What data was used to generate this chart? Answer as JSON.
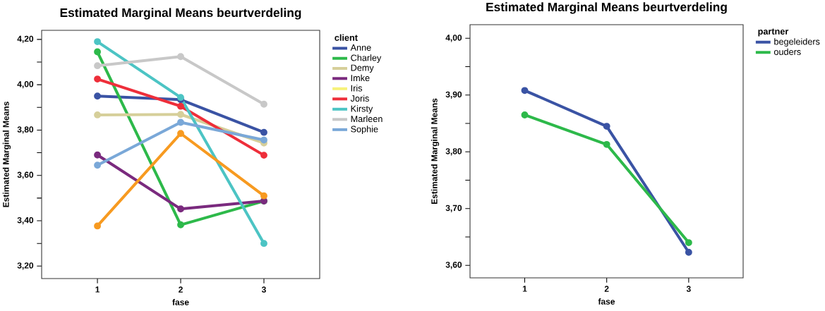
{
  "chart_data": [
    {
      "type": "line",
      "title": "Estimated Marginal Means beurtverdeling",
      "xlabel": "fase",
      "ylabel": "Estimated Marginal Means",
      "legend_title": "client",
      "legend": "right",
      "marker": "circle",
      "line_style": "solid",
      "x": [
        1,
        2,
        3
      ],
      "xlim": [
        0.33,
        3.67
      ],
      "xticks": [
        1,
        2,
        3
      ],
      "ylim": [
        3.145,
        4.24
      ],
      "yticks": [
        {
          "value": 3.2,
          "label": "3,20"
        },
        {
          "value": 3.3,
          "label": null
        },
        {
          "value": 3.4,
          "label": "3,40"
        },
        {
          "value": 3.5,
          "label": null
        },
        {
          "value": 3.6,
          "label": "3,60"
        },
        {
          "value": 3.7,
          "label": null
        },
        {
          "value": 3.8,
          "label": "3,80"
        },
        {
          "value": 3.9,
          "label": null
        },
        {
          "value": 4.0,
          "label": "4,00"
        },
        {
          "value": 4.1,
          "label": null
        },
        {
          "value": 4.2,
          "label": "4,20"
        }
      ],
      "series": [
        {
          "name": "Anne",
          "color": "#3a53a4",
          "values": [
            3.95,
            3.934,
            3.79
          ]
        },
        {
          "name": "Charley",
          "color": "#2db94a",
          "values": [
            4.145,
            3.382,
            3.487
          ]
        },
        {
          "name": "Demy",
          "color": "#d6cf9a",
          "values": [
            3.867,
            3.869,
            3.743
          ]
        },
        {
          "name": "Imke",
          "color": "#7a2a7e",
          "values": [
            3.69,
            3.452,
            3.487
          ]
        },
        {
          "name": "Iris",
          "color": "#f7f27a",
          "values": [
            null,
            null,
            null
          ]
        },
        {
          "name": "Joris",
          "color": "#ee2e3a",
          "values": [
            4.025,
            3.905,
            3.689
          ]
        },
        {
          "name": "Kirsty",
          "color": "#4cc4c4",
          "values": [
            4.19,
            3.944,
            3.3
          ]
        },
        {
          "name": "Marleen",
          "color": "#c8c8c8",
          "values": [
            4.084,
            4.124,
            3.914
          ]
        },
        {
          "name": "Sophie",
          "color": "#7aa8d8",
          "values": [
            3.645,
            3.834,
            3.756
          ]
        },
        {
          "color": "#f79a20",
          "values": [
            3.377,
            3.785,
            3.51
          ]
        }
      ]
    },
    {
      "type": "line",
      "title": "Estimated Marginal Means beurtverdeling",
      "xlabel": "fase",
      "ylabel": "Estimated Marginal Means",
      "legend_title": "partner",
      "legend": "right",
      "marker": "circle",
      "line_style": "solid",
      "x": [
        1,
        2,
        3
      ],
      "xlim": [
        0.333,
        3.664
      ],
      "xticks": [
        1,
        2,
        3
      ],
      "ylim": [
        3.578,
        4.024
      ],
      "yticks": [
        {
          "value": 3.6,
          "label": "3,60"
        },
        {
          "value": 3.65,
          "label": null
        },
        {
          "value": 3.7,
          "label": "3,70"
        },
        {
          "value": 3.75,
          "label": null
        },
        {
          "value": 3.8,
          "label": "3,80"
        },
        {
          "value": 3.85,
          "label": null
        },
        {
          "value": 3.9,
          "label": "3,90"
        },
        {
          "value": 3.95,
          "label": null
        },
        {
          "value": 4.0,
          "label": "4,00"
        }
      ],
      "series": [
        {
          "name": "begeleiders",
          "color": "#3a53a4",
          "values": [
            3.908,
            3.845,
            3.623
          ]
        },
        {
          "name": "ouders",
          "color": "#2db94a",
          "values": [
            3.865,
            3.813,
            3.64
          ]
        }
      ]
    }
  ]
}
